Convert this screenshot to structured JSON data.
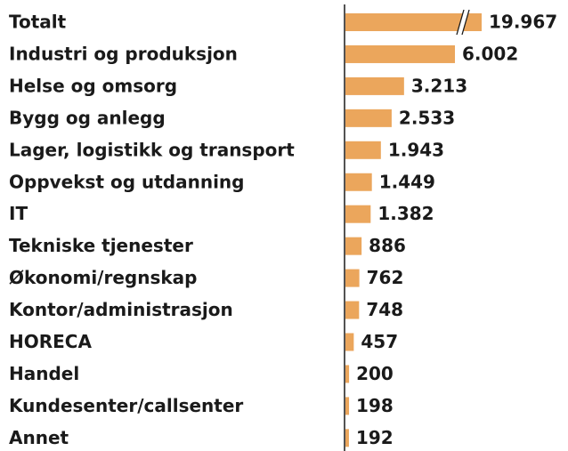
{
  "chart_data": {
    "type": "bar",
    "orientation": "horizontal",
    "color": "#eba65c",
    "axis_break": true,
    "categories": [
      "Totalt",
      "Industri og produksjon",
      "Helse og omsorg",
      "Bygg og anlegg",
      "Lager, logistikk og transport",
      "Oppvekst og utdanning",
      "IT",
      "Tekniske tjenester",
      "Økonomi/regnskap",
      "Kontor/administrasjon",
      "HORECA",
      "Handel",
      "Kundesenter/callsenter",
      "Annet"
    ],
    "values": [
      19967,
      6002,
      3213,
      2533,
      1943,
      1449,
      1382,
      886,
      762,
      748,
      457,
      200,
      198,
      192
    ],
    "value_labels": [
      "19.967",
      "6.002",
      "3.213",
      "2.533",
      "1.943",
      "1.449",
      "1.382",
      "886",
      "762",
      "748",
      "457",
      "200",
      "198",
      "192"
    ]
  }
}
